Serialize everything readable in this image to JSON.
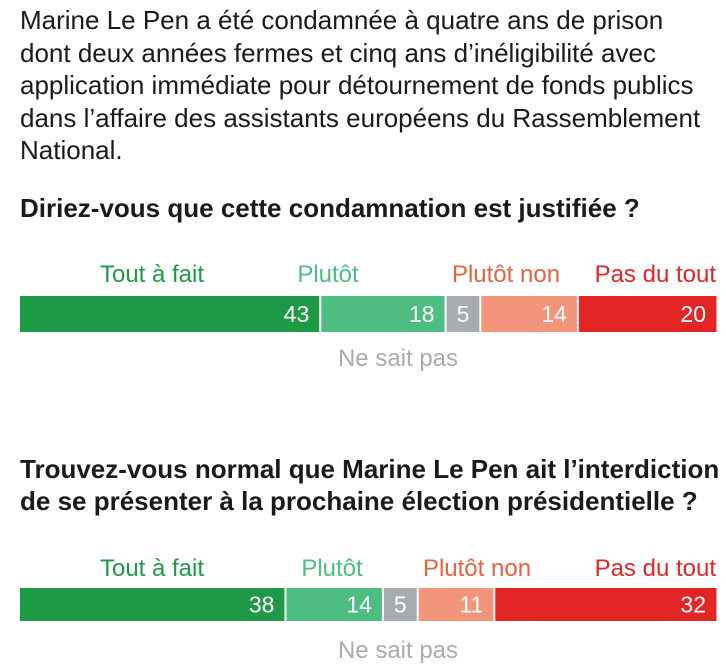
{
  "intro_text": "Marine Le Pen a été condamnée à quatre ans de prison dont deux années fermes et cinq ans d’inéligibilité avec application immédiate pour détournement de fonds publics dans l’affaire des assistants européens du Rassemblement National.",
  "chart_data": [
    {
      "type": "bar",
      "orientation": "horizontal-stacked",
      "title": "Diriez-vous que cette condamnation est justifiée ?",
      "categories": [
        "Tout à fait",
        "Plutôt",
        "Ne sait pas",
        "Plutôt non",
        "Pas du tout"
      ],
      "values": [
        43,
        18,
        5,
        14,
        20
      ],
      "colors": [
        "#1e9a46",
        "#4dbd82",
        "#a7acb0",
        "#f2957a",
        "#e32526"
      ],
      "label_colors": [
        "#1e9a46",
        "#4dbd82",
        "#a7acb0",
        "#ea6141",
        "#e32526"
      ]
    },
    {
      "type": "bar",
      "orientation": "horizontal-stacked",
      "title": "Trouvez-vous normal que Marine Le Pen ait l’interdiction de se présenter à la prochaine élection présidentielle ?",
      "categories": [
        "Tout à fait",
        "Plutôt",
        "Ne sait pas",
        "Plutôt non",
        "Pas du tout"
      ],
      "values": [
        38,
        14,
        5,
        11,
        32
      ],
      "colors": [
        "#1e9a46",
        "#4dbd82",
        "#a7acb0",
        "#f2957a",
        "#e32526"
      ],
      "label_colors": [
        "#1e9a46",
        "#4dbd82",
        "#a7acb0",
        "#ea6141",
        "#e32526"
      ]
    }
  ]
}
